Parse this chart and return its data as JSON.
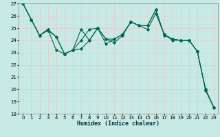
{
  "xlabel": "Humidex (Indice chaleur)",
  "background_color": "#c8eae4",
  "grid_color_major": "#e8c8c8",
  "grid_color_minor": "#e8c8c8",
  "line_color": "#006655",
  "xlim": [
    -0.5,
    23.5
  ],
  "ylim": [
    18,
    27
  ],
  "yticks": [
    18,
    19,
    20,
    21,
    22,
    23,
    24,
    25,
    26,
    27
  ],
  "xticks": [
    0,
    1,
    2,
    3,
    4,
    5,
    6,
    7,
    8,
    9,
    10,
    11,
    12,
    13,
    14,
    15,
    16,
    17,
    18,
    19,
    20,
    21,
    22,
    23
  ],
  "series1": [
    [
      0,
      27.0
    ],
    [
      1,
      25.7
    ],
    [
      2,
      24.4
    ],
    [
      3,
      24.8
    ],
    [
      4,
      24.3
    ],
    [
      5,
      22.9
    ],
    [
      6,
      23.2
    ],
    [
      7,
      24.0
    ],
    [
      8,
      24.9
    ],
    [
      9,
      25.0
    ],
    [
      10,
      23.7
    ],
    [
      11,
      24.1
    ],
    [
      12,
      24.5
    ],
    [
      13,
      25.5
    ],
    [
      14,
      25.2
    ],
    [
      15,
      24.9
    ],
    [
      16,
      26.2
    ],
    [
      17,
      24.5
    ],
    [
      18,
      24.0
    ],
    [
      19,
      24.0
    ],
    [
      20,
      24.0
    ],
    [
      21,
      23.1
    ],
    [
      22,
      19.9
    ],
    [
      23,
      18.5
    ]
  ],
  "series2": [
    [
      0,
      27.0
    ],
    [
      1,
      25.7
    ],
    [
      2,
      24.4
    ],
    [
      3,
      24.9
    ],
    [
      4,
      23.2
    ],
    [
      5,
      22.9
    ],
    [
      6,
      23.2
    ],
    [
      7,
      23.3
    ],
    [
      8,
      24.0
    ],
    [
      9,
      25.0
    ],
    [
      10,
      24.1
    ],
    [
      11,
      23.8
    ],
    [
      12,
      24.4
    ],
    [
      13,
      25.5
    ],
    [
      14,
      25.2
    ],
    [
      15,
      25.2
    ],
    [
      16,
      26.5
    ],
    [
      17,
      24.4
    ],
    [
      18,
      24.1
    ],
    [
      19,
      24.0
    ],
    [
      20,
      24.0
    ],
    [
      21,
      23.1
    ],
    [
      22,
      20.0
    ],
    [
      23,
      18.5
    ]
  ],
  "series3": [
    [
      0,
      27.0
    ],
    [
      1,
      25.7
    ],
    [
      2,
      24.4
    ],
    [
      3,
      24.9
    ],
    [
      4,
      24.3
    ],
    [
      5,
      22.9
    ],
    [
      6,
      23.2
    ],
    [
      7,
      24.9
    ],
    [
      8,
      24.0
    ],
    [
      9,
      25.0
    ],
    [
      10,
      24.1
    ],
    [
      11,
      24.1
    ],
    [
      12,
      24.5
    ],
    [
      13,
      25.5
    ],
    [
      14,
      25.2
    ],
    [
      15,
      25.2
    ],
    [
      16,
      26.5
    ],
    [
      17,
      24.5
    ],
    [
      18,
      24.1
    ],
    [
      19,
      24.0
    ],
    [
      20,
      24.0
    ],
    [
      21,
      23.1
    ],
    [
      22,
      19.9
    ],
    [
      23,
      18.5
    ]
  ],
  "line_width": 0.8,
  "marker_size": 1.8,
  "font_size_tick": 5.0,
  "font_size_label": 6.0
}
